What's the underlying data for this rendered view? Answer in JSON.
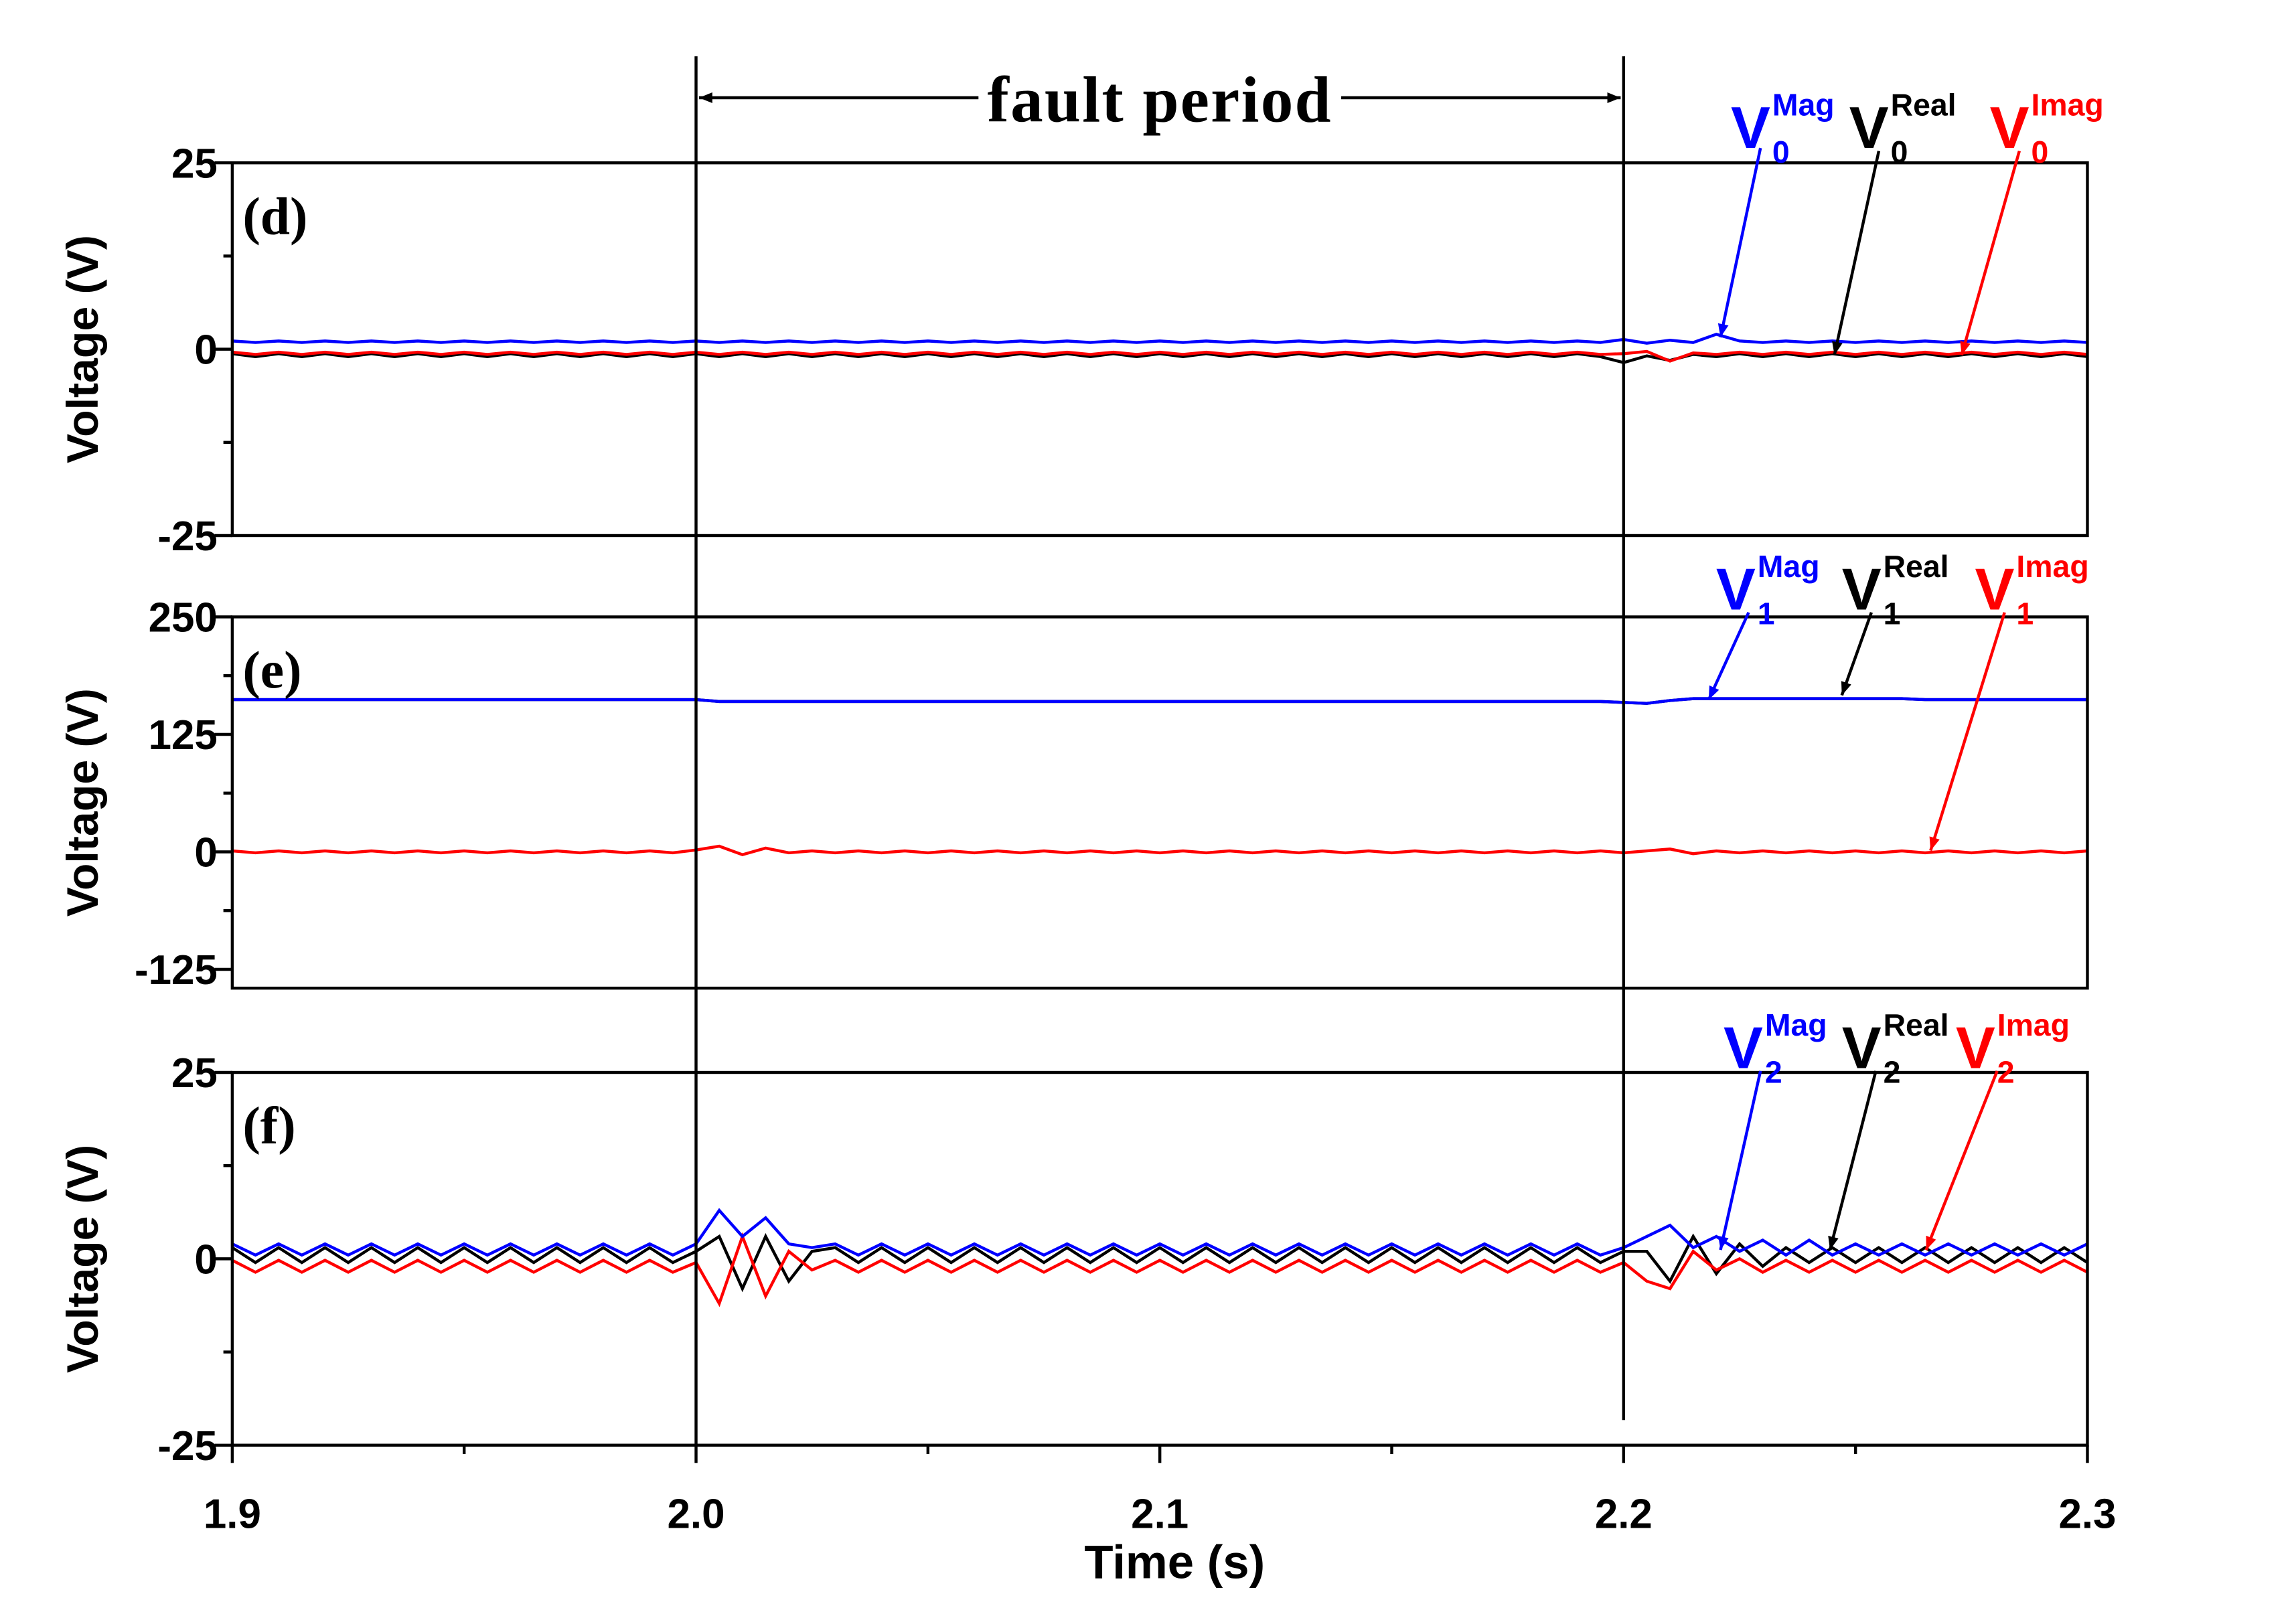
{
  "annotations": [
    {
      "text": "fault period",
      "x_start": 2,
      "x_end": 2.2
    }
  ],
  "chart_data": [
    {
      "type": "line",
      "panel": "(d)",
      "ylabel": "Voltage (V)",
      "xlim": [
        1.9,
        2.3
      ],
      "ylim": [
        -25,
        25
      ],
      "yticks": [
        -25,
        0,
        25
      ],
      "x": [
        1.9,
        1.905,
        1.91,
        1.915,
        1.92,
        1.925,
        1.93,
        1.935,
        1.94,
        1.945,
        1.95,
        1.955,
        1.96,
        1.965,
        1.97,
        1.975,
        1.98,
        1.985,
        1.99,
        1.995,
        2.0,
        2.005,
        2.01,
        2.015,
        2.02,
        2.025,
        2.03,
        2.035,
        2.04,
        2.045,
        2.05,
        2.055,
        2.06,
        2.065,
        2.07,
        2.075,
        2.08,
        2.085,
        2.09,
        2.095,
        2.1,
        2.105,
        2.11,
        2.115,
        2.12,
        2.125,
        2.13,
        2.135,
        2.14,
        2.145,
        2.15,
        2.155,
        2.16,
        2.165,
        2.17,
        2.175,
        2.18,
        2.185,
        2.19,
        2.195,
        2.2,
        2.205,
        2.21,
        2.215,
        2.22,
        2.225,
        2.23,
        2.235,
        2.24,
        2.245,
        2.25,
        2.255,
        2.26,
        2.265,
        2.27,
        2.275,
        2.28,
        2.285,
        2.29,
        2.295,
        2.3
      ],
      "series": [
        {
          "name": "V",
          "sup": "Real",
          "sub": "0",
          "color": "#000000",
          "values": [
            -0.6,
            -1.0,
            -0.6,
            -1.0,
            -0.6,
            -1.0,
            -0.6,
            -1.0,
            -0.6,
            -1.0,
            -0.6,
            -1.0,
            -0.6,
            -1.0,
            -0.6,
            -1.0,
            -0.6,
            -1.0,
            -0.6,
            -1.0,
            -0.6,
            -1.0,
            -0.6,
            -1.0,
            -0.6,
            -1.0,
            -0.6,
            -1.0,
            -0.6,
            -1.0,
            -0.6,
            -1.0,
            -0.6,
            -1.0,
            -0.6,
            -1.0,
            -0.6,
            -1.0,
            -0.6,
            -1.0,
            -0.6,
            -1.0,
            -0.6,
            -1.0,
            -0.6,
            -1.0,
            -0.6,
            -1.0,
            -0.6,
            -1.0,
            -0.6,
            -1.0,
            -0.6,
            -1.0,
            -0.6,
            -1.0,
            -0.6,
            -1.0,
            -0.6,
            -1.0,
            -1.8,
            -0.9,
            -1.5,
            -0.7,
            -1.0,
            -0.6,
            -1.0,
            -0.6,
            -1.0,
            -0.6,
            -1.0,
            -0.6,
            -1.0,
            -0.6,
            -1.0,
            -0.6,
            -1.0,
            -0.6,
            -1.0,
            -0.6,
            -1.0
          ]
        },
        {
          "name": "V",
          "sup": "Imag",
          "sub": "0",
          "color": "#ff0000",
          "values": [
            -0.4,
            -0.7,
            -0.4,
            -0.7,
            -0.4,
            -0.7,
            -0.4,
            -0.7,
            -0.4,
            -0.7,
            -0.4,
            -0.7,
            -0.4,
            -0.7,
            -0.4,
            -0.7,
            -0.4,
            -0.7,
            -0.4,
            -0.7,
            -0.4,
            -0.7,
            -0.4,
            -0.7,
            -0.4,
            -0.7,
            -0.4,
            -0.7,
            -0.4,
            -0.7,
            -0.4,
            -0.7,
            -0.4,
            -0.7,
            -0.4,
            -0.7,
            -0.4,
            -0.7,
            -0.4,
            -0.7,
            -0.4,
            -0.7,
            -0.4,
            -0.7,
            -0.4,
            -0.7,
            -0.4,
            -0.7,
            -0.4,
            -0.7,
            -0.4,
            -0.7,
            -0.4,
            -0.7,
            -0.4,
            -0.7,
            -0.4,
            -0.7,
            -0.4,
            -0.7,
            -0.6,
            -0.3,
            -1.6,
            -0.5,
            -0.7,
            -0.4,
            -0.7,
            -0.4,
            -0.7,
            -0.4,
            -0.7,
            -0.4,
            -0.7,
            -0.4,
            -0.7,
            -0.4,
            -0.7,
            -0.4,
            -0.7,
            -0.4,
            -0.7
          ]
        },
        {
          "name": "V",
          "sup": "Mag",
          "sub": "0",
          "color": "#0000ff",
          "values": [
            1.1,
            0.9,
            1.1,
            0.9,
            1.1,
            0.9,
            1.1,
            0.9,
            1.1,
            0.9,
            1.1,
            0.9,
            1.1,
            0.9,
            1.1,
            0.9,
            1.1,
            0.9,
            1.1,
            0.9,
            1.1,
            0.9,
            1.1,
            0.9,
            1.1,
            0.9,
            1.1,
            0.9,
            1.1,
            0.9,
            1.1,
            0.9,
            1.1,
            0.9,
            1.1,
            0.9,
            1.1,
            0.9,
            1.1,
            0.9,
            1.1,
            0.9,
            1.1,
            0.9,
            1.1,
            0.9,
            1.1,
            0.9,
            1.1,
            0.9,
            1.1,
            0.9,
            1.1,
            0.9,
            1.1,
            0.9,
            1.1,
            0.9,
            1.1,
            0.9,
            1.3,
            0.8,
            1.2,
            0.9,
            2.0,
            1.1,
            0.9,
            1.1,
            0.9,
            1.1,
            0.9,
            1.1,
            0.9,
            1.1,
            0.9,
            1.1,
            0.9,
            1.1,
            0.9,
            1.1,
            0.9
          ]
        }
      ]
    },
    {
      "type": "line",
      "panel": "(e)",
      "ylabel": "Voltage (V)",
      "xlim": [
        1.9,
        2.3
      ],
      "ylim": [
        -145,
        250
      ],
      "yticks": [
        -125,
        0,
        125,
        250
      ],
      "x": [
        1.9,
        1.905,
        1.91,
        1.915,
        1.92,
        1.925,
        1.93,
        1.935,
        1.94,
        1.945,
        1.95,
        1.955,
        1.96,
        1.965,
        1.97,
        1.975,
        1.98,
        1.985,
        1.99,
        1.995,
        2.0,
        2.005,
        2.01,
        2.015,
        2.02,
        2.025,
        2.03,
        2.035,
        2.04,
        2.045,
        2.05,
        2.055,
        2.06,
        2.065,
        2.07,
        2.075,
        2.08,
        2.085,
        2.09,
        2.095,
        2.1,
        2.105,
        2.11,
        2.115,
        2.12,
        2.125,
        2.13,
        2.135,
        2.14,
        2.145,
        2.15,
        2.155,
        2.16,
        2.165,
        2.17,
        2.175,
        2.18,
        2.185,
        2.19,
        2.195,
        2.2,
        2.205,
        2.21,
        2.215,
        2.22,
        2.225,
        2.23,
        2.235,
        2.24,
        2.245,
        2.25,
        2.255,
        2.26,
        2.265,
        2.27,
        2.275,
        2.28,
        2.285,
        2.29,
        2.295,
        2.3
      ],
      "series": [
        {
          "name": "V",
          "sup": "Real",
          "sub": "1",
          "color": "#000000",
          "values": [
            162,
            162,
            162,
            162,
            162,
            162,
            162,
            162,
            162,
            162,
            162,
            162,
            162,
            162,
            162,
            162,
            162,
            162,
            162,
            162,
            162,
            160,
            160,
            160,
            160,
            160,
            160,
            160,
            160,
            160,
            160,
            160,
            160,
            160,
            160,
            160,
            160,
            160,
            160,
            160,
            160,
            160,
            160,
            160,
            160,
            160,
            160,
            160,
            160,
            160,
            160,
            160,
            160,
            160,
            160,
            160,
            160,
            160,
            160,
            160,
            159,
            158,
            161,
            163,
            163,
            163,
            163,
            163,
            163,
            163,
            163,
            163,
            163,
            162,
            162,
            162,
            162,
            162,
            162,
            162,
            162
          ]
        },
        {
          "name": "V",
          "sup": "Imag",
          "sub": "1",
          "color": "#ff0000",
          "values": [
            1,
            -1,
            1,
            -1,
            1,
            -1,
            1,
            -1,
            1,
            -1,
            1,
            -1,
            1,
            -1,
            1,
            -1,
            1,
            -1,
            1,
            -1,
            2,
            6,
            -3,
            4,
            -1,
            1,
            -1,
            1,
            -1,
            1,
            -1,
            1,
            -1,
            1,
            -1,
            1,
            -1,
            1,
            -1,
            1,
            -1,
            1,
            -1,
            1,
            -1,
            1,
            -1,
            1,
            -1,
            1,
            -1,
            1,
            -1,
            1,
            -1,
            1,
            -1,
            1,
            -1,
            1,
            -1,
            1,
            3,
            -2,
            1,
            -1,
            1,
            -1,
            1,
            -1,
            1,
            -1,
            1,
            -1,
            1,
            -1,
            1,
            -1,
            1,
            -1,
            1
          ]
        },
        {
          "name": "V",
          "sup": "Mag",
          "sub": "1",
          "color": "#0000ff",
          "values": [
            162,
            162,
            162,
            162,
            162,
            162,
            162,
            162,
            162,
            162,
            162,
            162,
            162,
            162,
            162,
            162,
            162,
            162,
            162,
            162,
            162,
            160,
            160,
            160,
            160,
            160,
            160,
            160,
            160,
            160,
            160,
            160,
            160,
            160,
            160,
            160,
            160,
            160,
            160,
            160,
            160,
            160,
            160,
            160,
            160,
            160,
            160,
            160,
            160,
            160,
            160,
            160,
            160,
            160,
            160,
            160,
            160,
            160,
            160,
            160,
            159,
            158,
            161,
            163,
            163,
            163,
            163,
            163,
            163,
            163,
            163,
            163,
            163,
            162,
            162,
            162,
            162,
            162,
            162,
            162,
            162
          ]
        }
      ]
    },
    {
      "type": "line",
      "panel": "(f)",
      "ylabel": "Voltage (V)",
      "xlabel": "Time (s)",
      "xlim": [
        1.9,
        2.3
      ],
      "xticks": [
        1.9,
        {
          "value": 2,
          "label": "2.0"
        },
        2.1,
        2.2,
        2.3
      ],
      "ylim": [
        -25,
        25
      ],
      "yticks": [
        -25,
        0,
        25
      ],
      "x": [
        1.9,
        1.905,
        1.91,
        1.915,
        1.92,
        1.925,
        1.93,
        1.935,
        1.94,
        1.945,
        1.95,
        1.955,
        1.96,
        1.965,
        1.97,
        1.975,
        1.98,
        1.985,
        1.99,
        1.995,
        2.0,
        2.005,
        2.01,
        2.015,
        2.02,
        2.025,
        2.03,
        2.035,
        2.04,
        2.045,
        2.05,
        2.055,
        2.06,
        2.065,
        2.07,
        2.075,
        2.08,
        2.085,
        2.09,
        2.095,
        2.1,
        2.105,
        2.11,
        2.115,
        2.12,
        2.125,
        2.13,
        2.135,
        2.14,
        2.145,
        2.15,
        2.155,
        2.16,
        2.165,
        2.17,
        2.175,
        2.18,
        2.185,
        2.19,
        2.195,
        2.2,
        2.205,
        2.21,
        2.215,
        2.22,
        2.225,
        2.23,
        2.235,
        2.24,
        2.245,
        2.25,
        2.255,
        2.26,
        2.265,
        2.27,
        2.275,
        2.28,
        2.285,
        2.29,
        2.295,
        2.3
      ],
      "series": [
        {
          "name": "V",
          "sup": "Real",
          "sub": "2",
          "color": "#000000",
          "values": [
            1.5,
            -0.5,
            1.5,
            -0.5,
            1.5,
            -0.5,
            1.5,
            -0.5,
            1.5,
            -0.5,
            1.5,
            -0.5,
            1.5,
            -0.5,
            1.5,
            -0.5,
            1.5,
            -0.5,
            1.5,
            -0.5,
            1,
            3,
            -4,
            3,
            -3,
            1,
            1.5,
            -0.5,
            1.5,
            -0.5,
            1.5,
            -0.5,
            1.5,
            -0.5,
            1.5,
            -0.5,
            1.5,
            -0.5,
            1.5,
            -0.5,
            1.5,
            -0.5,
            1.5,
            -0.5,
            1.5,
            -0.5,
            1.5,
            -0.5,
            1.5,
            -0.5,
            1.5,
            -0.5,
            1.5,
            -0.5,
            1.5,
            -0.5,
            1.5,
            -0.5,
            1.5,
            -0.5,
            1,
            1,
            -3,
            3,
            -2,
            2,
            -1,
            1.5,
            -0.5,
            1.5,
            -0.5,
            1.5,
            -0.5,
            1.5,
            -0.5,
            1.5,
            -0.5,
            1.5,
            -0.5,
            1.5,
            -0.5
          ]
        },
        {
          "name": "V",
          "sup": "Imag",
          "sub": "2",
          "color": "#ff0000",
          "values": [
            -0.2,
            -1.8,
            -0.2,
            -1.8,
            -0.2,
            -1.8,
            -0.2,
            -1.8,
            -0.2,
            -1.8,
            -0.2,
            -1.8,
            -0.2,
            -1.8,
            -0.2,
            -1.8,
            -0.2,
            -1.8,
            -0.2,
            -1.8,
            -0.5,
            -6,
            3,
            -5,
            1,
            -1.5,
            -0.2,
            -1.8,
            -0.2,
            -1.8,
            -0.2,
            -1.8,
            -0.2,
            -1.8,
            -0.2,
            -1.8,
            -0.2,
            -1.8,
            -0.2,
            -1.8,
            -0.2,
            -1.8,
            -0.2,
            -1.8,
            -0.2,
            -1.8,
            -0.2,
            -1.8,
            -0.2,
            -1.8,
            -0.2,
            -1.8,
            -0.2,
            -1.8,
            -0.2,
            -1.8,
            -0.2,
            -1.8,
            -0.2,
            -1.8,
            -0.5,
            -3,
            -4,
            1,
            -1.5,
            0,
            -1.8,
            -0.2,
            -1.8,
            -0.2,
            -1.8,
            -0.2,
            -1.8,
            -0.2,
            -1.8,
            -0.2,
            -1.8,
            -0.2,
            -1.8,
            -0.2,
            -1.8
          ]
        },
        {
          "name": "V",
          "sup": "Mag",
          "sub": "2",
          "color": "#0000ff",
          "values": [
            2,
            0.5,
            2,
            0.5,
            2,
            0.5,
            2,
            0.5,
            2,
            0.5,
            2,
            0.5,
            2,
            0.5,
            2,
            0.5,
            2,
            0.5,
            2,
            0.5,
            2,
            6.5,
            3,
            5.5,
            2,
            1.5,
            2,
            0.5,
            2,
            0.5,
            2,
            0.5,
            2,
            0.5,
            2,
            0.5,
            2,
            0.5,
            2,
            0.5,
            2,
            0.5,
            2,
            0.5,
            2,
            0.5,
            2,
            0.5,
            2,
            0.5,
            2,
            0.5,
            2,
            0.5,
            2,
            0.5,
            2,
            0.5,
            2,
            0.5,
            1.5,
            3,
            4.5,
            1.5,
            3,
            1,
            2.5,
            0.5,
            2.5,
            0.5,
            2,
            0.5,
            2,
            0.5,
            2,
            0.5,
            2,
            0.5,
            2,
            0.5,
            2
          ]
        }
      ]
    }
  ]
}
